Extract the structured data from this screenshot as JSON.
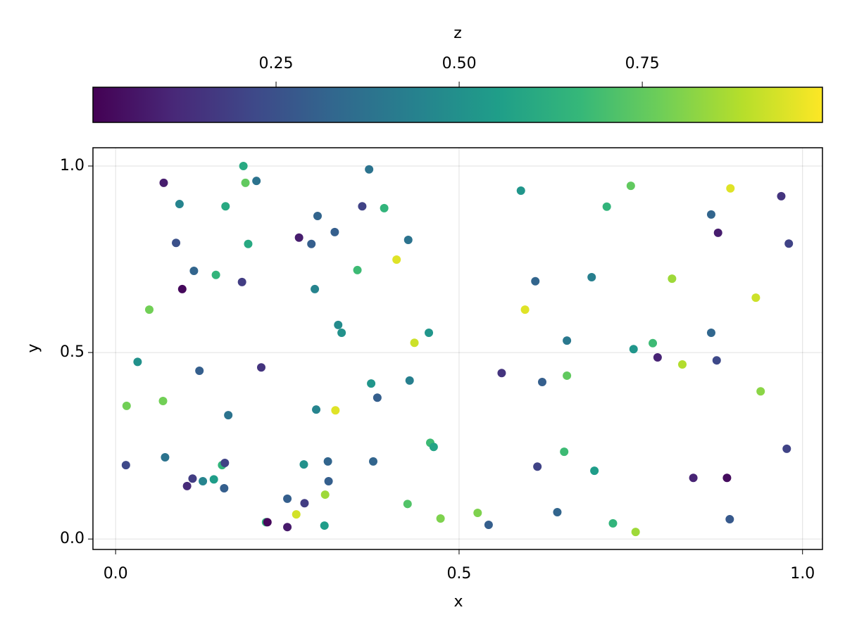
{
  "chart_data": {
    "type": "scatter",
    "xlabel": "x",
    "ylabel": "y",
    "colorbar_label": "z",
    "colormap": "viridis",
    "grid": true,
    "xlim": [
      -0.033,
      1.029
    ],
    "ylim": [
      -0.028,
      1.049
    ],
    "zlim": [
      0.0,
      0.996
    ],
    "xticks": [
      {
        "value": 0,
        "label": "0.0"
      },
      0.5,
      {
        "value": 1,
        "label": "1.0"
      }
    ],
    "yticks": [
      {
        "value": 0,
        "label": "0.0"
      },
      0.5,
      {
        "value": 1,
        "label": "1.0"
      }
    ],
    "zticks": [
      0.25,
      {
        "value": 0.5,
        "label": "0.50"
      },
      0.75
    ],
    "x": [
      0.07,
      0.093,
      0.088,
      0.114,
      0.097,
      0.049,
      0.032,
      0.122,
      0.016,
      0.069,
      0.015,
      0.072,
      0.112,
      0.104,
      0.127,
      0.143,
      0.155,
      0.159,
      0.158,
      0.164,
      0.146,
      0.16,
      0.186,
      0.189,
      0.205,
      0.193,
      0.184,
      0.212,
      0.219,
      0.221,
      0.25,
      0.25,
      0.263,
      0.267,
      0.285,
      0.294,
      0.29,
      0.292,
      0.274,
      0.275,
      0.305,
      0.304,
      0.309,
      0.31,
      0.319,
      0.32,
      0.324,
      0.329,
      0.352,
      0.359,
      0.369,
      0.372,
      0.381,
      0.375,
      0.391,
      0.409,
      0.426,
      0.428,
      0.435,
      0.456,
      0.458,
      0.463,
      0.425,
      0.473,
      0.527,
      0.543,
      0.562,
      0.59,
      0.596,
      0.611,
      0.621,
      0.614,
      0.643,
      0.653,
      0.657,
      0.657,
      0.693,
      0.697,
      0.715,
      0.724,
      0.75,
      0.754,
      0.757,
      0.782,
      0.789,
      0.81,
      0.825,
      0.841,
      0.867,
      0.867,
      0.877,
      0.875,
      0.89,
      0.894,
      0.895,
      0.932,
      0.939,
      0.969,
      0.98,
      0.977
    ],
    "y": [
      0.955,
      0.898,
      0.794,
      0.719,
      0.67,
      0.615,
      0.475,
      0.451,
      0.357,
      0.37,
      0.198,
      0.219,
      0.162,
      0.142,
      0.155,
      0.16,
      0.198,
      0.204,
      0.136,
      0.332,
      0.708,
      0.892,
      1.0,
      0.955,
      0.96,
      0.791,
      0.689,
      0.46,
      0.045,
      0.045,
      0.108,
      0.032,
      0.066,
      0.808,
      0.791,
      0.866,
      0.67,
      0.347,
      0.2,
      0.096,
      0.119,
      0.036,
      0.208,
      0.155,
      0.823,
      0.345,
      0.574,
      0.553,
      0.721,
      0.892,
      0.991,
      0.417,
      0.379,
      0.208,
      0.887,
      0.749,
      0.802,
      0.425,
      0.526,
      0.553,
      0.258,
      0.247,
      0.094,
      0.055,
      0.07,
      0.038,
      0.445,
      0.934,
      0.615,
      0.691,
      0.421,
      0.194,
      0.072,
      0.234,
      0.532,
      0.438,
      0.702,
      0.183,
      0.891,
      0.042,
      0.947,
      0.509,
      0.019,
      0.525,
      0.487,
      0.698,
      0.468,
      0.164,
      0.87,
      0.553,
      0.821,
      0.479,
      0.164,
      0.053,
      0.94,
      0.647,
      0.396,
      0.919,
      0.792,
      0.242
    ],
    "z": [
      0.08,
      0.45,
      0.25,
      0.32,
      0.02,
      0.78,
      0.5,
      0.3,
      0.78,
      0.78,
      0.22,
      0.38,
      0.18,
      0.12,
      0.45,
      0.55,
      0.65,
      0.2,
      0.3,
      0.38,
      0.65,
      0.6,
      0.6,
      0.75,
      0.38,
      0.6,
      0.18,
      0.15,
      0.65,
      0.02,
      0.3,
      0.07,
      0.93,
      0.08,
      0.3,
      0.32,
      0.45,
      0.45,
      0.5,
      0.18,
      0.85,
      0.55,
      0.32,
      0.3,
      0.3,
      0.95,
      0.48,
      0.5,
      0.68,
      0.2,
      0.38,
      0.52,
      0.3,
      0.32,
      0.65,
      0.95,
      0.38,
      0.43,
      0.92,
      0.52,
      0.68,
      0.58,
      0.72,
      0.8,
      0.8,
      0.3,
      0.15,
      0.52,
      0.95,
      0.32,
      0.3,
      0.2,
      0.32,
      0.68,
      0.4,
      0.75,
      0.43,
      0.55,
      0.65,
      0.65,
      0.75,
      0.52,
      0.85,
      0.68,
      0.1,
      0.85,
      0.88,
      0.1,
      0.32,
      0.33,
      0.08,
      0.22,
      0.03,
      0.28,
      0.95,
      0.92,
      0.82,
      0.15,
      0.2,
      0.2
    ]
  }
}
